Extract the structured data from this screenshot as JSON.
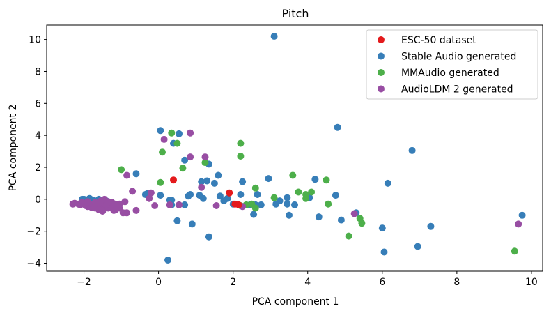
{
  "chart_data": {
    "type": "scatter",
    "title": "Pitch",
    "xlabel": "PCA component 1",
    "ylabel": "PCA component 2",
    "xlim": [
      -3,
      10.3
    ],
    "ylim": [
      -4.5,
      10.9
    ],
    "xticks": [
      -2,
      0,
      2,
      4,
      6,
      8,
      10
    ],
    "yticks": [
      -4,
      -2,
      0,
      2,
      4,
      6,
      8,
      10
    ],
    "tick_minus": "−",
    "grid": false,
    "legend_position": "top-right",
    "series": [
      {
        "name": "Stable Audio generated",
        "color": "#377eb8",
        "points": [
          [
            3.1,
            10.2
          ],
          [
            4.8,
            4.5
          ],
          [
            6.8,
            3.05
          ],
          [
            6.15,
            1.0
          ],
          [
            0.05,
            4.3
          ],
          [
            0.55,
            4.1
          ],
          [
            0.4,
            3.5
          ],
          [
            0.7,
            2.45
          ],
          [
            1.35,
            2.2
          ],
          [
            1.6,
            1.5
          ],
          [
            2.25,
            1.1
          ],
          [
            2.95,
            1.3
          ],
          [
            4.2,
            1.25
          ],
          [
            -0.6,
            1.6
          ],
          [
            -0.35,
            0.3
          ],
          [
            -0.3,
            0.35
          ],
          [
            0.05,
            0.25
          ],
          [
            0.35,
            -0.05
          ],
          [
            0.8,
            0.2
          ],
          [
            0.85,
            0.3
          ],
          [
            1.15,
            1.1
          ],
          [
            1.3,
            1.15
          ],
          [
            1.5,
            1.0
          ],
          [
            1.1,
            0.25
          ],
          [
            1.2,
            0.05
          ],
          [
            1.65,
            0.2
          ],
          [
            1.85,
            0.05
          ],
          [
            2.2,
            0.3
          ],
          [
            2.65,
            0.3
          ],
          [
            3.25,
            -0.1
          ],
          [
            3.45,
            0.1
          ],
          [
            3.45,
            -0.3
          ],
          [
            3.65,
            -0.35
          ],
          [
            4.05,
            0.1
          ],
          [
            4.75,
            0.25
          ],
          [
            2.45,
            -0.35
          ],
          [
            2.6,
            -0.35
          ],
          [
            2.75,
            -0.35
          ],
          [
            2.55,
            -0.95
          ],
          [
            3.15,
            -0.3
          ],
          [
            3.5,
            -1.0
          ],
          [
            4.3,
            -1.1
          ],
          [
            4.9,
            -1.3
          ],
          [
            5.3,
            -0.85
          ],
          [
            6.0,
            -1.8
          ],
          [
            6.05,
            -3.3
          ],
          [
            6.95,
            -2.95
          ],
          [
            7.3,
            -1.7
          ],
          [
            9.75,
            -1.0
          ],
          [
            0.5,
            -1.35
          ],
          [
            0.9,
            -1.55
          ],
          [
            1.35,
            -2.35
          ],
          [
            0.25,
            -3.8
          ],
          [
            0.35,
            -0.35
          ],
          [
            0.7,
            -0.35
          ],
          [
            1.75,
            -0.1
          ],
          [
            2.0,
            -0.3
          ],
          [
            0.3,
            -0.05
          ],
          [
            -2.0,
            0.0
          ],
          [
            -2.05,
            0.0
          ],
          [
            -1.95,
            -0.05
          ],
          [
            -1.75,
            -0.05
          ],
          [
            -1.85,
            0.05
          ],
          [
            -1.6,
            0.0
          ],
          [
            -1.4,
            -0.1
          ],
          [
            -1.55,
            -0.2
          ],
          [
            -1.7,
            -0.15
          ],
          [
            -1.9,
            -0.25
          ],
          [
            -1.45,
            -0.35
          ]
        ]
      },
      {
        "name": "MMAudio generated",
        "color": "#4daf4a",
        "points": [
          [
            0.35,
            4.15
          ],
          [
            0.5,
            3.5
          ],
          [
            0.1,
            2.95
          ],
          [
            0.65,
            1.95
          ],
          [
            1.25,
            2.3
          ],
          [
            2.2,
            3.5
          ],
          [
            2.2,
            2.7
          ],
          [
            -1.0,
            1.85
          ],
          [
            0.05,
            1.05
          ],
          [
            2.6,
            0.7
          ],
          [
            3.1,
            0.1
          ],
          [
            3.6,
            1.5
          ],
          [
            3.75,
            0.45
          ],
          [
            3.95,
            0.3
          ],
          [
            4.1,
            0.45
          ],
          [
            3.95,
            0.05
          ],
          [
            4.5,
            1.2
          ],
          [
            4.55,
            -0.3
          ],
          [
            5.4,
            -1.2
          ],
          [
            5.45,
            -1.5
          ],
          [
            5.1,
            -2.3
          ],
          [
            9.55,
            -3.25
          ],
          [
            2.2,
            -0.4
          ],
          [
            2.5,
            -0.3
          ],
          [
            2.6,
            -0.55
          ],
          [
            2.35,
            -0.35
          ]
        ]
      },
      {
        "name": "AudioLDM 2 generated",
        "color": "#984ea3",
        "points": [
          [
            0.85,
            4.15
          ],
          [
            0.15,
            3.75
          ],
          [
            0.85,
            2.65
          ],
          [
            1.25,
            2.65
          ],
          [
            -0.85,
            1.5
          ],
          [
            -0.7,
            0.5
          ],
          [
            1.15,
            0.75
          ],
          [
            -0.2,
            0.4
          ],
          [
            -0.25,
            0.05
          ],
          [
            -0.1,
            -0.4
          ],
          [
            0.3,
            -0.35
          ],
          [
            0.55,
            -0.35
          ],
          [
            1.55,
            -0.4
          ],
          [
            2.25,
            -0.45
          ],
          [
            5.25,
            -0.9
          ],
          [
            9.65,
            -1.55
          ],
          [
            -0.9,
            -0.15
          ],
          [
            -0.85,
            -0.85
          ],
          [
            -0.95,
            -0.85
          ],
          [
            -0.6,
            -0.7
          ],
          [
            -2.3,
            -0.3
          ],
          [
            -2.25,
            -0.25
          ],
          [
            -2.15,
            -0.3
          ],
          [
            -2.1,
            -0.35
          ],
          [
            -2.0,
            -0.3
          ],
          [
            -1.95,
            -0.4
          ],
          [
            -1.9,
            -0.45
          ],
          [
            -1.85,
            -0.3
          ],
          [
            -1.8,
            -0.5
          ],
          [
            -1.75,
            -0.35
          ],
          [
            -1.7,
            -0.55
          ],
          [
            -1.65,
            -0.4
          ],
          [
            -1.6,
            -0.3
          ],
          [
            -1.55,
            -0.45
          ],
          [
            -1.5,
            -0.6
          ],
          [
            -1.45,
            -0.25
          ],
          [
            -1.4,
            -0.4
          ],
          [
            -1.35,
            -0.55
          ],
          [
            -1.3,
            -0.35
          ],
          [
            -1.25,
            -0.45
          ],
          [
            -1.2,
            -0.7
          ],
          [
            -1.15,
            -0.3
          ],
          [
            -1.1,
            -0.5
          ],
          [
            -2.05,
            -0.2
          ],
          [
            -1.9,
            -0.15
          ],
          [
            -1.7,
            -0.2
          ],
          [
            -1.55,
            -0.1
          ],
          [
            -1.45,
            0.0
          ],
          [
            -1.35,
            -0.15
          ],
          [
            -1.25,
            -0.2
          ],
          [
            -1.2,
            -0.35
          ],
          [
            -1.6,
            -0.65
          ],
          [
            -1.5,
            -0.75
          ],
          [
            -1.05,
            -0.55
          ],
          [
            -1.15,
            -0.65
          ],
          [
            -1.05,
            -0.3
          ]
        ]
      },
      {
        "name": "ESC-50 dataset",
        "color": "#e41a1c",
        "points": [
          [
            0.4,
            1.2
          ],
          [
            1.9,
            0.4
          ],
          [
            2.05,
            -0.3
          ],
          [
            2.15,
            -0.35
          ]
        ]
      }
    ],
    "legend": [
      {
        "label": "ESC-50 dataset",
        "color": "#e41a1c"
      },
      {
        "label": "Stable Audio generated",
        "color": "#377eb8"
      },
      {
        "label": "MMAudio generated",
        "color": "#4daf4a"
      },
      {
        "label": "AudioLDM 2 generated",
        "color": "#984ea3"
      }
    ]
  }
}
